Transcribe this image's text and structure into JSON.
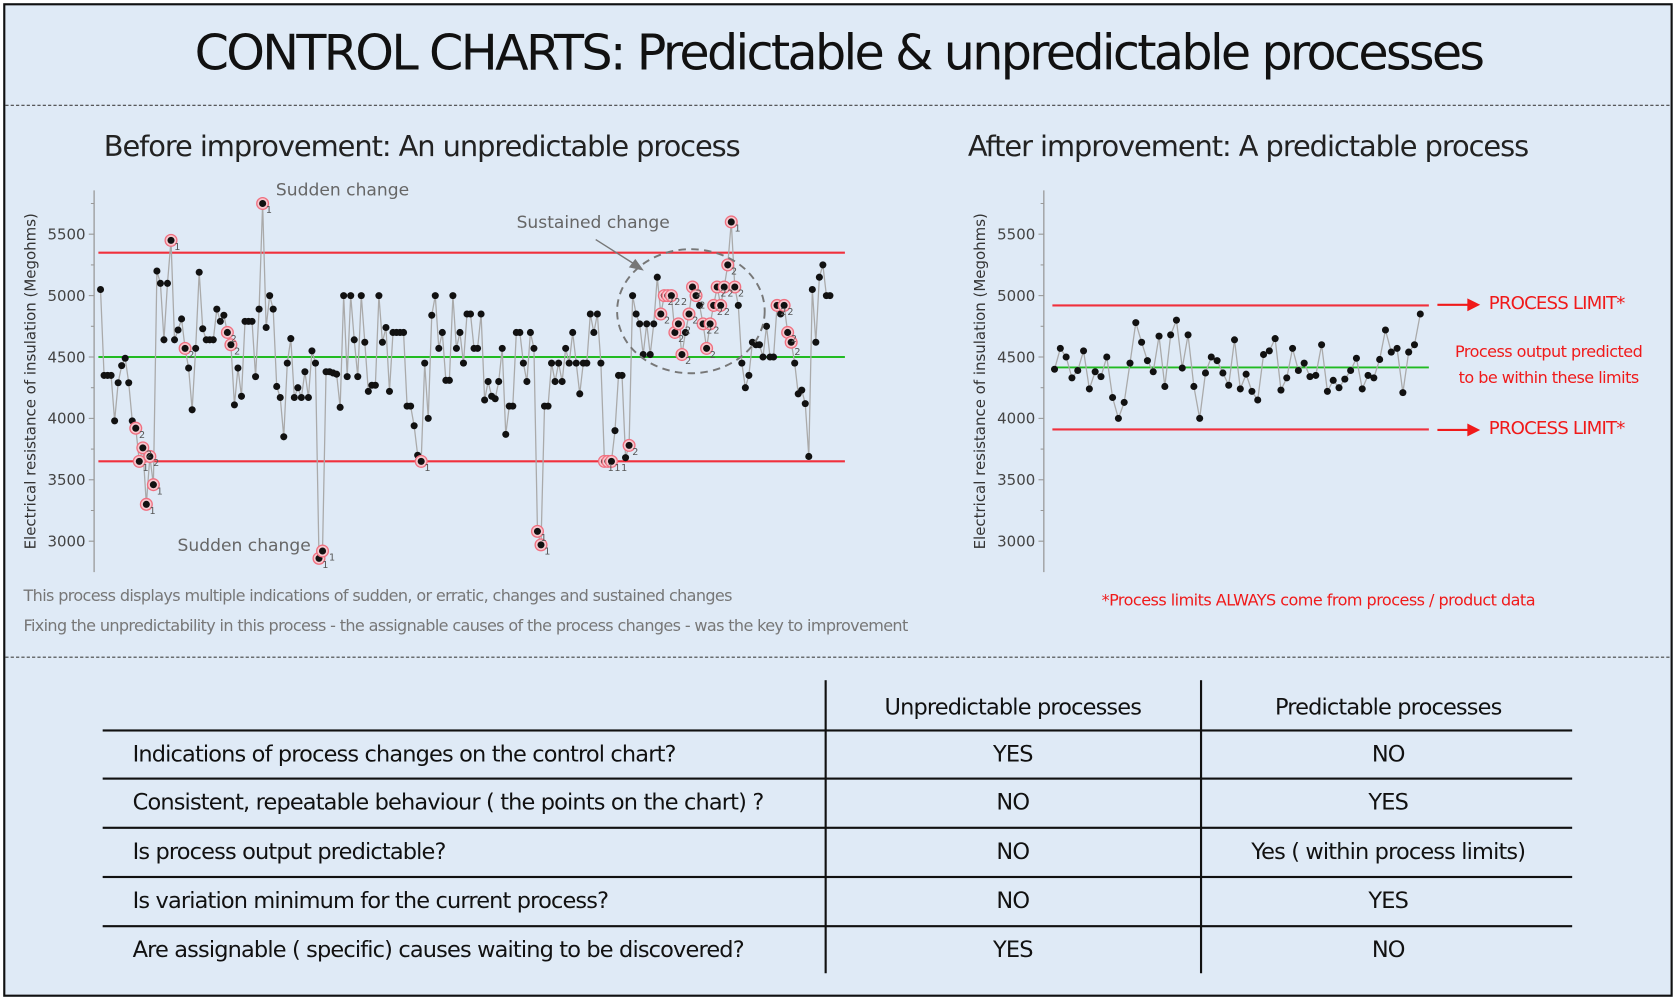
{
  "title": "CONTROL CHARTS: Predictable & unpredictable processes",
  "left_panel": {
    "subtitle": "Before improvement: An unpredictable process",
    "annotations": {
      "sudden_top": "Sudden change",
      "sudden_bottom": "Sudden change",
      "sustained": "Sustained change"
    },
    "captions": [
      "This process displays multiple indications of sudden, or erratic, changes and sustained changes",
      "Fixing the unpredictability in this process - the assignable causes of the process changes - was the key to improvement"
    ]
  },
  "right_panel": {
    "subtitle": "After improvement: A predictable process",
    "limit_label_upper": "PROCESS LIMIT*",
    "limit_label_lower": "PROCESS LIMIT*",
    "predicted_note": [
      "Process output predicted",
      "to be within these limits"
    ],
    "footnote": "*Process limits ALWAYS come from process / product data"
  },
  "colors": {
    "limit": "#f0303c",
    "center": "#22bb22",
    "line": "#aaaaaa",
    "point": "#111111",
    "flag": "#f07080",
    "accent_text": "#f01a1a"
  },
  "chart_data": [
    {
      "type": "line",
      "ylabel": "Electrical resistance of insulation (Megohms)",
      "yticks": [
        3000,
        3500,
        4000,
        4500,
        5000,
        5500
      ],
      "ylim": [
        2800,
        5800
      ],
      "ucl": 5350,
      "center": 4500,
      "lcl": 3650,
      "points": [
        [
          5050,
          0
        ],
        [
          4350,
          0
        ],
        [
          4350,
          0
        ],
        [
          4350,
          0
        ],
        [
          3980,
          0
        ],
        [
          4290,
          0
        ],
        [
          4430,
          0
        ],
        [
          4490,
          0
        ],
        [
          4290,
          0
        ],
        [
          3980,
          0
        ],
        [
          3920,
          2
        ],
        [
          3650,
          1
        ],
        [
          3760,
          2
        ],
        [
          3300,
          1
        ],
        [
          3690,
          2
        ],
        [
          3460,
          1
        ],
        [
          5200,
          0
        ],
        [
          5100,
          0
        ],
        [
          4640,
          0
        ],
        [
          5100,
          0
        ],
        [
          5450,
          1
        ],
        [
          4640,
          0
        ],
        [
          4720,
          0
        ],
        [
          4810,
          0
        ],
        [
          4570,
          2
        ],
        [
          4410,
          0
        ],
        [
          4070,
          0
        ],
        [
          4570,
          0
        ],
        [
          5190,
          0
        ],
        [
          4730,
          0
        ],
        [
          4640,
          0
        ],
        [
          4640,
          0
        ],
        [
          4640,
          0
        ],
        [
          4890,
          0
        ],
        [
          4790,
          0
        ],
        [
          4840,
          0
        ],
        [
          4700,
          2
        ],
        [
          4600,
          2
        ],
        [
          4110,
          0
        ],
        [
          4410,
          0
        ],
        [
          4180,
          0
        ],
        [
          4790,
          0
        ],
        [
          4790,
          0
        ],
        [
          4790,
          0
        ],
        [
          4340,
          0
        ],
        [
          4890,
          0
        ],
        [
          5750,
          1
        ],
        [
          4740,
          0
        ],
        [
          5000,
          0
        ],
        [
          4890,
          0
        ],
        [
          4260,
          0
        ],
        [
          4170,
          0
        ],
        [
          3850,
          0
        ],
        [
          4450,
          0
        ],
        [
          4650,
          0
        ],
        [
          4170,
          0
        ],
        [
          4250,
          0
        ],
        [
          4170,
          0
        ],
        [
          4380,
          0
        ],
        [
          4170,
          0
        ],
        [
          4550,
          0
        ],
        [
          4450,
          0
        ],
        [
          2860,
          1
        ],
        [
          2920,
          1
        ],
        [
          4380,
          0
        ],
        [
          4380,
          0
        ],
        [
          4370,
          0
        ],
        [
          4360,
          0
        ],
        [
          4090,
          0
        ],
        [
          5000,
          0
        ],
        [
          4340,
          0
        ],
        [
          5000,
          0
        ],
        [
          4640,
          0
        ],
        [
          4340,
          0
        ],
        [
          5000,
          0
        ],
        [
          4620,
          0
        ],
        [
          4220,
          0
        ],
        [
          4270,
          0
        ],
        [
          4270,
          0
        ],
        [
          5000,
          0
        ],
        [
          4620,
          0
        ],
        [
          4740,
          0
        ],
        [
          4220,
          0
        ],
        [
          4700,
          0
        ],
        [
          4700,
          0
        ],
        [
          4700,
          0
        ],
        [
          4700,
          0
        ],
        [
          4100,
          0
        ],
        [
          4100,
          0
        ],
        [
          3940,
          0
        ],
        [
          3700,
          0
        ],
        [
          3650,
          1
        ],
        [
          4450,
          0
        ],
        [
          4000,
          0
        ],
        [
          4840,
          0
        ],
        [
          5000,
          0
        ],
        [
          4570,
          0
        ],
        [
          4700,
          0
        ],
        [
          4310,
          0
        ],
        [
          4310,
          0
        ],
        [
          5000,
          0
        ],
        [
          4570,
          0
        ],
        [
          4700,
          0
        ],
        [
          4450,
          0
        ],
        [
          4850,
          0
        ],
        [
          4850,
          0
        ],
        [
          4570,
          0
        ],
        [
          4570,
          0
        ],
        [
          4850,
          0
        ],
        [
          4150,
          0
        ],
        [
          4300,
          0
        ],
        [
          4180,
          0
        ],
        [
          4160,
          0
        ],
        [
          4300,
          0
        ],
        [
          4570,
          0
        ],
        [
          3870,
          0
        ],
        [
          4100,
          0
        ],
        [
          4100,
          0
        ],
        [
          4700,
          0
        ],
        [
          4700,
          0
        ],
        [
          4450,
          0
        ],
        [
          4300,
          0
        ],
        [
          4700,
          0
        ],
        [
          4570,
          0
        ],
        [
          3080,
          1
        ],
        [
          2970,
          1
        ],
        [
          4100,
          0
        ],
        [
          4100,
          0
        ],
        [
          4450,
          0
        ],
        [
          4300,
          0
        ],
        [
          4450,
          0
        ],
        [
          4300,
          0
        ],
        [
          4570,
          0
        ],
        [
          4450,
          0
        ],
        [
          4700,
          0
        ],
        [
          4450,
          0
        ],
        [
          4200,
          0
        ],
        [
          4450,
          0
        ],
        [
          4450,
          0
        ],
        [
          4850,
          0
        ],
        [
          4700,
          0
        ],
        [
          4850,
          0
        ],
        [
          4450,
          0
        ],
        [
          3650,
          1
        ],
        [
          3650,
          1
        ],
        [
          3650,
          1
        ],
        [
          3900,
          0
        ],
        [
          4350,
          0
        ],
        [
          4350,
          0
        ],
        [
          3680,
          0
        ],
        [
          3780,
          2
        ],
        [
          5000,
          0
        ],
        [
          4850,
          0
        ],
        [
          4770,
          0
        ],
        [
          4520,
          0
        ],
        [
          4770,
          0
        ],
        [
          4520,
          0
        ],
        [
          4770,
          0
        ],
        [
          5150,
          0
        ],
        [
          4850,
          2
        ],
        [
          5000,
          2
        ],
        [
          5000,
          2
        ],
        [
          5000,
          2
        ],
        [
          4700,
          2
        ],
        [
          4770,
          2
        ],
        [
          4520,
          2
        ],
        [
          4700,
          0
        ],
        [
          4850,
          2
        ],
        [
          5070,
          2
        ],
        [
          5000,
          2
        ],
        [
          4920,
          0
        ],
        [
          4770,
          2
        ],
        [
          4570,
          2
        ],
        [
          4770,
          2
        ],
        [
          4920,
          2
        ],
        [
          5070,
          2
        ],
        [
          4920,
          2
        ],
        [
          5070,
          2
        ],
        [
          5250,
          2
        ],
        [
          5600,
          1
        ],
        [
          5070,
          2
        ],
        [
          4920,
          0
        ],
        [
          4450,
          0
        ],
        [
          4250,
          0
        ],
        [
          4350,
          0
        ],
        [
          4620,
          0
        ],
        [
          4600,
          0
        ],
        [
          4600,
          0
        ],
        [
          4500,
          0
        ],
        [
          4750,
          0
        ],
        [
          4500,
          0
        ],
        [
          4500,
          0
        ],
        [
          4920,
          2
        ],
        [
          4850,
          0
        ],
        [
          4920,
          2
        ],
        [
          4700,
          2
        ],
        [
          4620,
          2
        ],
        [
          4450,
          0
        ],
        [
          4200,
          0
        ],
        [
          4230,
          0
        ],
        [
          4120,
          0
        ],
        [
          3690,
          0
        ],
        [
          5050,
          0
        ],
        [
          4620,
          0
        ],
        [
          5150,
          0
        ],
        [
          5250,
          0
        ],
        [
          5000,
          0
        ],
        [
          5000,
          0
        ]
      ]
    },
    {
      "type": "line",
      "ylabel": "Electrical resistance of insulation (Megohms)",
      "yticks": [
        3000,
        3500,
        4000,
        4500,
        5000,
        5500
      ],
      "ylim": [
        2800,
        5800
      ],
      "ucl": 4920,
      "center": 4415,
      "lcl": 3910,
      "values": [
        4400,
        4570,
        4500,
        4330,
        4390,
        4550,
        4240,
        4380,
        4340,
        4500,
        4170,
        4000,
        4130,
        4450,
        4780,
        4620,
        4470,
        4380,
        4670,
        4260,
        4680,
        4800,
        4410,
        4680,
        4260,
        4000,
        4370,
        4500,
        4470,
        4370,
        4270,
        4640,
        4240,
        4360,
        4220,
        4150,
        4520,
        4550,
        4650,
        4230,
        4330,
        4570,
        4390,
        4450,
        4340,
        4350,
        4600,
        4220,
        4310,
        4250,
        4320,
        4390,
        4490,
        4240,
        4350,
        4330,
        4480,
        4720,
        4540,
        4570,
        4210,
        4540,
        4600,
        4850
      ]
    }
  ],
  "table": {
    "headers": [
      "Unpredictable processes",
      "Predictable processes"
    ],
    "rows": [
      {
        "question": "Indications of process changes on the control chart?",
        "unpredictable": "YES",
        "predictable": "NO"
      },
      {
        "question": "Consistent, repeatable behaviour ( the points on the chart) ?",
        "unpredictable": "NO",
        "predictable": "YES"
      },
      {
        "question": "Is process output predictable?",
        "unpredictable": "NO",
        "predictable": "Yes ( within process limits)"
      },
      {
        "question": "Is variation minimum for the current process?",
        "unpredictable": "NO",
        "predictable": "YES"
      },
      {
        "question": "Are assignable ( specific) causes waiting to be discovered?",
        "unpredictable": "YES",
        "predictable": "NO"
      }
    ]
  }
}
